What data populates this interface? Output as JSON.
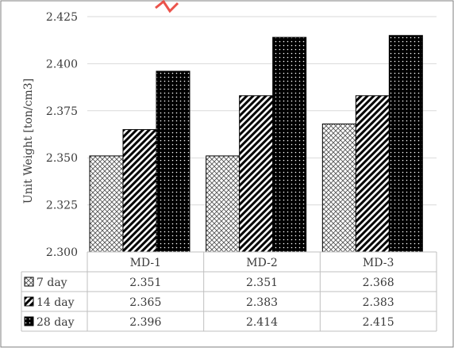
{
  "chart_data": {
    "type": "bar",
    "title": "",
    "xlabel": "",
    "ylabel": "Unit Weight [ton/cm3]",
    "ylim": [
      2.3,
      2.425
    ],
    "yticks": [
      "2.300",
      "2.325",
      "2.350",
      "2.375",
      "2.400",
      "2.425"
    ],
    "categories": [
      "MD-1",
      "MD-2",
      "MD-3"
    ],
    "grid": true,
    "legend": "data-table",
    "series": [
      {
        "name": "7 day",
        "pattern": "crosshatch",
        "values": [
          2.351,
          2.351,
          2.368
        ],
        "labels": [
          "2.351",
          "2.351",
          "2.368"
        ]
      },
      {
        "name": "14 day",
        "pattern": "diagonal-stripes",
        "values": [
          2.365,
          2.383,
          2.383
        ],
        "labels": [
          "2.365",
          "2.383",
          "2.383"
        ]
      },
      {
        "name": "28 day",
        "pattern": "black-dotted",
        "values": [
          2.396,
          2.414,
          2.415
        ],
        "labels": [
          "2.396",
          "2.414",
          "2.415"
        ]
      }
    ],
    "colors": {
      "bar_outline": "#000000",
      "grid": "#d9d9d9",
      "text": "#3a3a3a",
      "frame": "#7f7f7f",
      "accent_mark": "#e8352c"
    }
  }
}
